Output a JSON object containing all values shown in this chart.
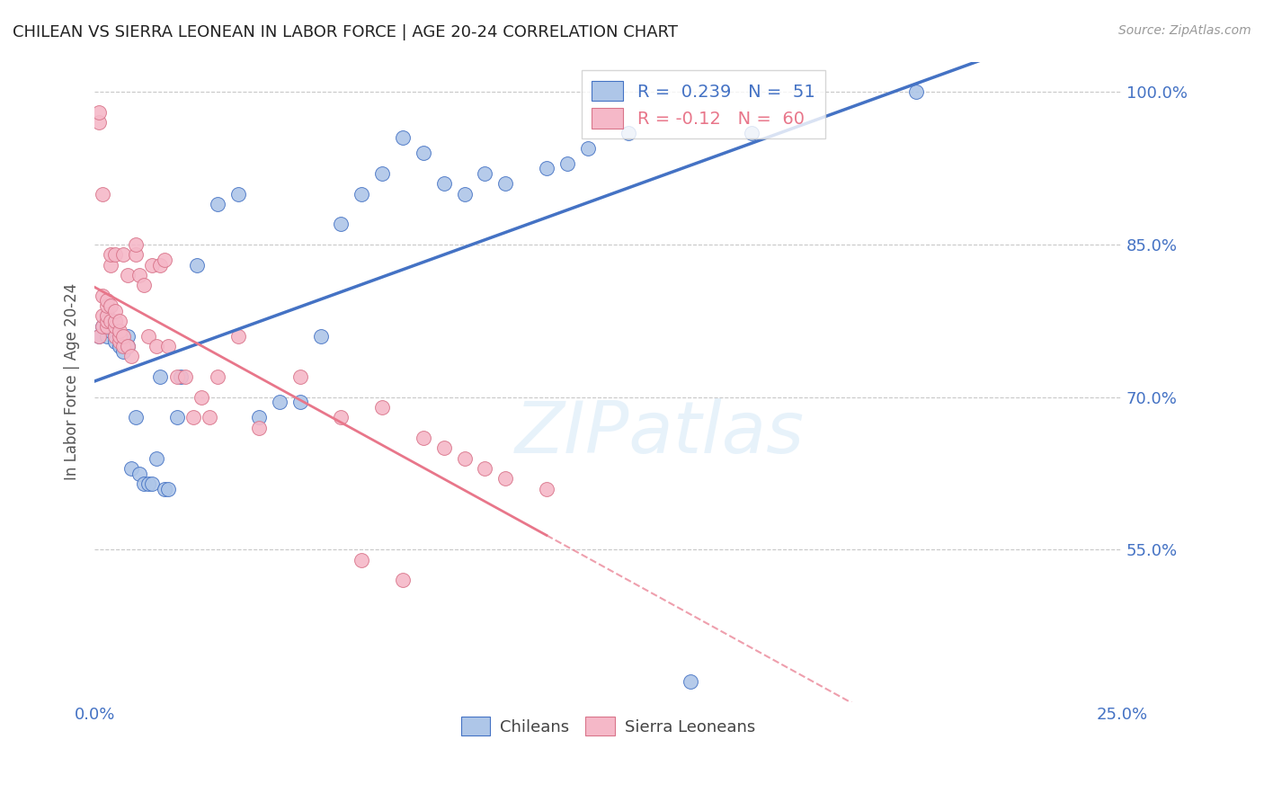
{
  "title": "CHILEAN VS SIERRA LEONEAN IN LABOR FORCE | AGE 20-24 CORRELATION CHART",
  "source": "Source: ZipAtlas.com",
  "ylabel": "In Labor Force | Age 20-24",
  "xlim": [
    0.0,
    0.25
  ],
  "ylim": [
    0.4,
    1.03
  ],
  "xticks": [
    0.0,
    0.05,
    0.1,
    0.15,
    0.2,
    0.25
  ],
  "xticklabels": [
    "0.0%",
    "",
    "",
    "",
    "",
    "25.0%"
  ],
  "yticks": [
    0.55,
    0.7,
    0.85,
    1.0
  ],
  "yticklabels": [
    "55.0%",
    "70.0%",
    "85.0%",
    "100.0%"
  ],
  "r_chilean": 0.239,
  "n_chilean": 51,
  "r_sierra": -0.12,
  "n_sierra": 60,
  "color_chilean": "#aec6e8",
  "color_sierra": "#f5b8c8",
  "line_color_chilean": "#4472c4",
  "line_color_sierra": "#e8768a",
  "watermark": "ZIPatlas",
  "chilean_x": [
    0.001,
    0.002,
    0.003,
    0.003,
    0.004,
    0.004,
    0.005,
    0.005,
    0.006,
    0.006,
    0.007,
    0.007,
    0.007,
    0.008,
    0.008,
    0.009,
    0.01,
    0.011,
    0.012,
    0.013,
    0.014,
    0.015,
    0.016,
    0.017,
    0.018,
    0.02,
    0.021,
    0.025,
    0.03,
    0.035,
    0.04,
    0.045,
    0.05,
    0.055,
    0.06,
    0.065,
    0.07,
    0.075,
    0.08,
    0.085,
    0.09,
    0.095,
    0.1,
    0.11,
    0.115,
    0.12,
    0.125,
    0.13,
    0.145,
    0.16,
    0.2
  ],
  "chilean_y": [
    0.76,
    0.77,
    0.76,
    0.78,
    0.765,
    0.77,
    0.76,
    0.755,
    0.76,
    0.75,
    0.76,
    0.755,
    0.745,
    0.76,
    0.75,
    0.63,
    0.68,
    0.625,
    0.615,
    0.615,
    0.615,
    0.64,
    0.72,
    0.61,
    0.61,
    0.68,
    0.72,
    0.83,
    0.89,
    0.9,
    0.68,
    0.695,
    0.695,
    0.76,
    0.87,
    0.9,
    0.92,
    0.955,
    0.94,
    0.91,
    0.9,
    0.92,
    0.91,
    0.925,
    0.93,
    0.945,
    0.975,
    0.96,
    0.42,
    0.96,
    1.0
  ],
  "sierra_x": [
    0.001,
    0.001,
    0.001,
    0.002,
    0.002,
    0.002,
    0.002,
    0.003,
    0.003,
    0.003,
    0.003,
    0.003,
    0.004,
    0.004,
    0.004,
    0.004,
    0.005,
    0.005,
    0.005,
    0.005,
    0.005,
    0.006,
    0.006,
    0.006,
    0.006,
    0.007,
    0.007,
    0.007,
    0.008,
    0.008,
    0.009,
    0.01,
    0.01,
    0.011,
    0.012,
    0.013,
    0.014,
    0.015,
    0.016,
    0.017,
    0.018,
    0.02,
    0.022,
    0.024,
    0.026,
    0.028,
    0.03,
    0.035,
    0.04,
    0.05,
    0.06,
    0.065,
    0.07,
    0.075,
    0.08,
    0.085,
    0.09,
    0.095,
    0.1,
    0.11
  ],
  "sierra_y": [
    0.76,
    0.97,
    0.98,
    0.77,
    0.78,
    0.9,
    0.8,
    0.77,
    0.775,
    0.78,
    0.79,
    0.795,
    0.83,
    0.775,
    0.84,
    0.79,
    0.76,
    0.84,
    0.77,
    0.775,
    0.785,
    0.755,
    0.76,
    0.765,
    0.775,
    0.75,
    0.76,
    0.84,
    0.75,
    0.82,
    0.74,
    0.84,
    0.85,
    0.82,
    0.81,
    0.76,
    0.83,
    0.75,
    0.83,
    0.835,
    0.75,
    0.72,
    0.72,
    0.68,
    0.7,
    0.68,
    0.72,
    0.76,
    0.67,
    0.72,
    0.68,
    0.54,
    0.69,
    0.52,
    0.66,
    0.65,
    0.64,
    0.63,
    0.62,
    0.61
  ]
}
